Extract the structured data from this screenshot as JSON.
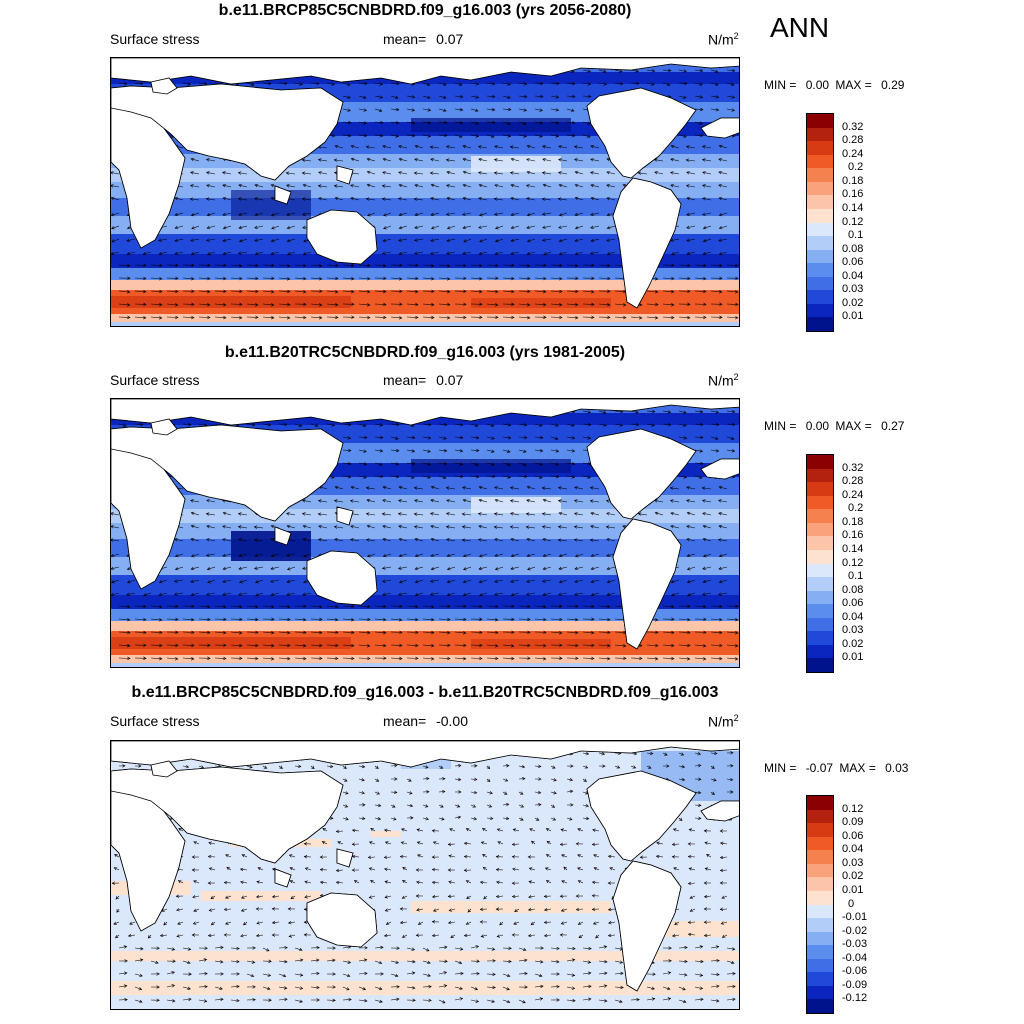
{
  "season": "ANN",
  "panels": [
    {
      "title": "b.e11.BRCP85C5CNBDRD.f09_g16.003 (yrs 2056-2080)",
      "left_label": "Surface stress",
      "mean_label": "mean=",
      "mean_value": "0.07",
      "units": "N/m",
      "units_sup": "2",
      "min_label": "MIN =",
      "min_value": "0.00",
      "max_label": "MAX =",
      "max_value": "0.29",
      "colorbar_labels": [
        "0.32",
        "0.28",
        "0.24",
        "0.2",
        "0.18",
        "0.16",
        "0.14",
        "0.12",
        "0.1",
        "0.08",
        "0.06",
        "0.04",
        "0.03",
        "0.02",
        "0.01"
      ]
    },
    {
      "title": "b.e11.B20TRC5CNBDRD.f09_g16.003 (yrs 1981-2005)",
      "left_label": "Surface stress",
      "mean_label": "mean=",
      "mean_value": "0.07",
      "units": "N/m",
      "units_sup": "2",
      "min_label": "MIN =",
      "min_value": "0.00",
      "max_label": "MAX =",
      "max_value": "0.27",
      "colorbar_labels": [
        "0.32",
        "0.28",
        "0.24",
        "0.2",
        "0.18",
        "0.16",
        "0.14",
        "0.12",
        "0.1",
        "0.08",
        "0.06",
        "0.04",
        "0.03",
        "0.02",
        "0.01"
      ]
    },
    {
      "title": "b.e11.BRCP85C5CNBDRD.f09_g16.003 - b.e11.B20TRC5CNBDRD.f09_g16.003",
      "left_label": "Surface stress",
      "mean_label": "mean=",
      "mean_value": "-0.00",
      "units": "N/m",
      "units_sup": "2",
      "min_label": "MIN =",
      "min_value": "-0.07",
      "max_label": "MAX =",
      "max_value": "0.03",
      "colorbar_labels": [
        "0.12",
        "0.09",
        "0.06",
        "0.04",
        "0.03",
        "0.02",
        "0.01",
        "0",
        "-0.01",
        "-0.02",
        "-0.03",
        "-0.04",
        "-0.06",
        "-0.09",
        "-0.12"
      ]
    }
  ],
  "colors": {
    "magnitude_scale": [
      "#8b0000",
      "#b2220f",
      "#d73b14",
      "#f05a26",
      "#f5814f",
      "#f9a27c",
      "#fcc4a8",
      "#fde3cf",
      "#dbe8fb",
      "#b2cdf7",
      "#86aef3",
      "#5a8ded",
      "#3f6ee6",
      "#2149d9",
      "#0a26bf",
      "#00138c"
    ],
    "difference_scale": [
      "#8b0000",
      "#b2220f",
      "#d73b14",
      "#f05a26",
      "#f5814f",
      "#f9a27c",
      "#fcc4a8",
      "#fde3cf",
      "#dbe8fb",
      "#b2cdf7",
      "#86aef3",
      "#5a8ded",
      "#3f6ee6",
      "#2149d9",
      "#0a26bf",
      "#00138c"
    ],
    "land": "#ffffff",
    "coast": "#000000"
  }
}
